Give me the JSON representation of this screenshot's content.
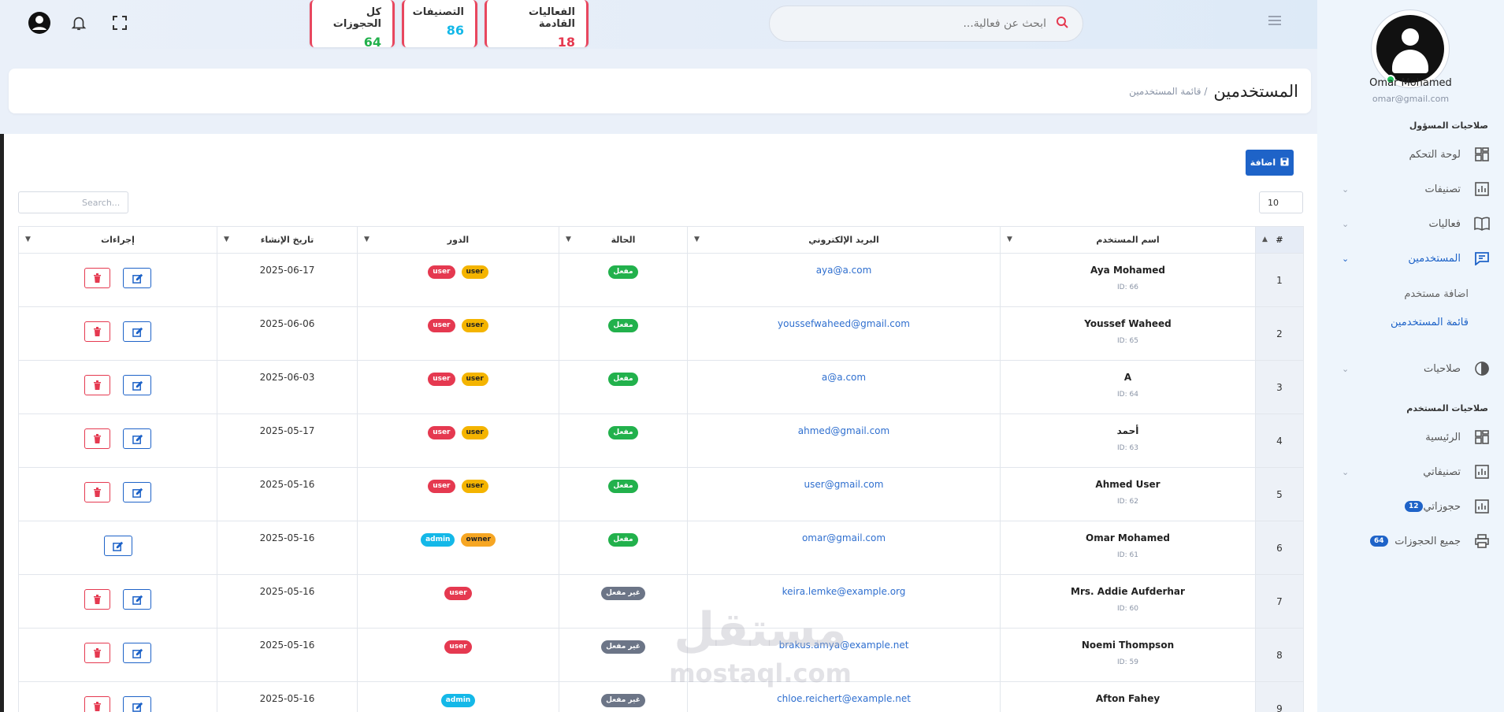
{
  "topbar": {
    "search_placeholder": "ابحث عن فعالية...",
    "stats": [
      {
        "title": "الفعاليات القادمة",
        "value": "18",
        "color": "#e53950"
      },
      {
        "title": "التصنيفات",
        "value": "86",
        "color": "#14b8e8"
      },
      {
        "title": "كل الحجوزات",
        "value": "64",
        "color": "#22b14c"
      }
    ]
  },
  "sidebar": {
    "user_name": "Omar Mohamed",
    "user_email": "omar@gmail.com",
    "admin_section": "صلاحيات المسؤول",
    "items": [
      {
        "label": "لوحة التحكم",
        "icon": "dashboard-icon"
      },
      {
        "label": "تصنيفات",
        "icon": "chart-icon"
      },
      {
        "label": "فعاليات",
        "icon": "book-icon"
      },
      {
        "label": "المستخدمين",
        "icon": "users-icon"
      },
      {
        "label": "صلاحيات",
        "icon": "halfcircle-icon"
      }
    ],
    "subitems": [
      {
        "label": "اضافة مستخدم"
      },
      {
        "label": "قائمة المستخدمين"
      }
    ],
    "user_section": "صلاحيات المستخدم",
    "user_items": [
      {
        "label": "الرئيسية",
        "icon": "dashboard-icon"
      },
      {
        "label": "تصنيفاتي",
        "icon": "chart-icon"
      },
      {
        "label": "حجوزاتي",
        "icon": "chart-icon",
        "count": "12"
      },
      {
        "label": "جميع الحجوزات",
        "icon": "printer-icon",
        "count": "64"
      }
    ]
  },
  "page": {
    "title": "المستخدمين",
    "breadcrumb": "/ قائمة المستخدمين"
  },
  "toolbar": {
    "add_label": "اضافة",
    "page_length": "10",
    "search_placeholder": "Search..."
  },
  "table": {
    "headers": [
      "#",
      "اسم المستخدم",
      "البريد الإلكتروني",
      "الحالة",
      "الدور",
      "تاريخ الإنشاء",
      "إجراءات"
    ],
    "rows": [
      {
        "n": "1",
        "name": "Aya Mohamed",
        "id": "ID: 66",
        "email": "aya@a.com",
        "status": "مفعل",
        "roles": [
          "user",
          "user"
        ],
        "date": "2025-06-17",
        "delete": true
      },
      {
        "n": "2",
        "name": "Youssef Waheed",
        "id": "ID: 65",
        "email": "youssefwaheed@gmail.com",
        "status": "مفعل",
        "roles": [
          "user",
          "user"
        ],
        "date": "2025-06-06",
        "delete": true
      },
      {
        "n": "3",
        "name": "A",
        "id": "ID: 64",
        "email": "a@a.com",
        "status": "مفعل",
        "roles": [
          "user",
          "user"
        ],
        "date": "2025-06-03",
        "delete": true
      },
      {
        "n": "4",
        "name": "أحمد",
        "id": "ID: 63",
        "email": "ahmed@gmail.com",
        "status": "مفعل",
        "roles": [
          "user",
          "user"
        ],
        "date": "2025-05-17",
        "delete": true
      },
      {
        "n": "5",
        "name": "Ahmed User",
        "id": "ID: 62",
        "email": "user@gmail.com",
        "status": "مفعل",
        "roles": [
          "user",
          "user"
        ],
        "date": "2025-05-16",
        "delete": true
      },
      {
        "n": "6",
        "name": "Omar Mohamed",
        "id": "ID: 61",
        "email": "omar@gmail.com",
        "status": "مفعل",
        "roles": [
          "owner",
          "admin"
        ],
        "date": "2025-05-16",
        "delete": false
      },
      {
        "n": "7",
        "name": "Mrs. Addie Aufderhar",
        "id": "ID: 60",
        "email": "keira.lemke@example.org",
        "status": "غير مفعل",
        "roles": [
          "user"
        ],
        "date": "2025-05-16",
        "delete": true
      },
      {
        "n": "8",
        "name": "Noemi Thompson",
        "id": "ID: 59",
        "email": "brakus.amya@example.net",
        "status": "غير مفعل",
        "roles": [
          "user"
        ],
        "date": "2025-05-16",
        "delete": true
      },
      {
        "n": "9",
        "name": "Afton Fahey",
        "id": "",
        "email": "chloe.reichert@example.net",
        "status": "غير مفعل",
        "roles": [
          "admin"
        ],
        "date": "2025-05-16",
        "delete": true
      }
    ]
  },
  "watermark": {
    "ar": "مستقل",
    "en": "mostaql.com"
  },
  "colors": {
    "accent": "#1e63c8",
    "danger": "#e53950",
    "success": "#22b14c"
  }
}
